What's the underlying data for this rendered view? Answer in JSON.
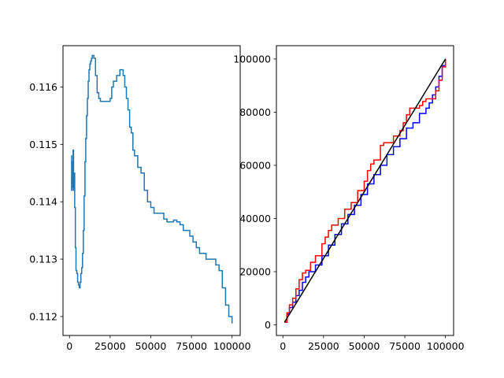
{
  "chart_data": [
    {
      "type": "line",
      "title": "",
      "xlabel": "",
      "ylabel": "",
      "xlim": [
        -4000,
        105000
      ],
      "ylim": [
        0.11167,
        0.11672
      ],
      "xticks": [
        0,
        25000,
        50000,
        75000,
        100000
      ],
      "yticks": [
        0.112,
        0.113,
        0.114,
        0.115,
        0.116
      ],
      "xtick_labels": [
        "0",
        "25000",
        "50000",
        "75000",
        "100000"
      ],
      "ytick_labels": [
        "0.112",
        "0.113",
        "0.114",
        "0.115",
        "0.116"
      ],
      "grid": false,
      "series": [
        {
          "color": "#1f77b4",
          "step": true,
          "x": [
            1000,
            1300,
            1600,
            1900,
            2200,
            2500,
            2800,
            3200,
            3600,
            4000,
            4500,
            5000,
            5500,
            6000,
            6500,
            7000,
            7500,
            8000,
            8500,
            9000,
            9500,
            10000,
            10500,
            11000,
            11500,
            12000,
            12500,
            13000,
            13500,
            14000,
            15000,
            16000,
            17000,
            18000,
            19000,
            20000,
            22000,
            25000,
            26000,
            27000,
            28000,
            29000,
            30000,
            31000,
            32000,
            33000,
            34000,
            35000,
            36000,
            37000,
            38000,
            39000,
            40000,
            42000,
            44000,
            46000,
            48000,
            50000,
            52000,
            54000,
            56000,
            58000,
            60000,
            62000,
            64000,
            66000,
            68000,
            70000,
            72000,
            74000,
            76000,
            78000,
            80000,
            84000,
            86000,
            88000,
            90000,
            92000,
            94000,
            96000,
            98000,
            100000
          ],
          "y": [
            0.1148,
            0.1142,
            0.1147,
            0.11425,
            0.1149,
            0.1142,
            0.1145,
            0.1139,
            0.1132,
            0.1128,
            0.11275,
            0.1126,
            0.11255,
            0.1125,
            0.1126,
            0.11275,
            0.11285,
            0.1131,
            0.1135,
            0.1141,
            0.1147,
            0.1151,
            0.1155,
            0.1158,
            0.1161,
            0.1163,
            0.1164,
            0.11645,
            0.1165,
            0.11655,
            0.1165,
            0.1162,
            0.1159,
            0.1158,
            0.11575,
            0.11575,
            0.11575,
            0.1158,
            0.116,
            0.1161,
            0.1161,
            0.1162,
            0.1162,
            0.1163,
            0.1163,
            0.1162,
            0.116,
            0.1158,
            0.1156,
            0.1153,
            0.1152,
            0.1149,
            0.1148,
            0.1146,
            0.1145,
            0.1142,
            0.114,
            0.1139,
            0.1138,
            0.1138,
            0.1138,
            0.1137,
            0.11365,
            0.11365,
            0.11368,
            0.11365,
            0.1136,
            0.1135,
            0.1135,
            0.1134,
            0.1133,
            0.1132,
            0.1131,
            0.113,
            0.113,
            0.113,
            0.1129,
            0.1128,
            0.1125,
            0.1122,
            0.112,
            0.11188
          ]
        }
      ]
    },
    {
      "type": "line",
      "title": "",
      "xlabel": "",
      "ylabel": "",
      "xlim": [
        -4000,
        105000
      ],
      "ylim": [
        -4000,
        105000
      ],
      "xticks": [
        0,
        25000,
        50000,
        75000,
        100000
      ],
      "yticks": [
        0,
        20000,
        40000,
        60000,
        80000,
        100000
      ],
      "xtick_labels": [
        "0",
        "25000",
        "50000",
        "75000",
        "100000"
      ],
      "ytick_labels": [
        "0",
        "20000",
        "40000",
        "60000",
        "80000",
        "100000"
      ],
      "grid": false,
      "series": [
        {
          "color": "#0000ff",
          "step": true,
          "x": [
            1000,
            2500,
            4000,
            6000,
            8000,
            10000,
            12000,
            14000,
            16000,
            20000,
            24000,
            28000,
            32000,
            36000,
            40000,
            44000,
            48000,
            52000,
            56000,
            60000,
            64000,
            68000,
            72000,
            76000,
            80000,
            84000,
            88000,
            90000,
            92000,
            94000,
            96000,
            98000,
            100000
          ],
          "y": [
            1000,
            4000,
            6500,
            8500,
            11000,
            13000,
            16000,
            18000,
            20000,
            22500,
            26000,
            30000,
            34000,
            38000,
            41500,
            45000,
            49000,
            53000,
            56500,
            60000,
            64000,
            67000,
            70000,
            74000,
            76000,
            79500,
            81500,
            83500,
            86500,
            89500,
            93500,
            97500,
            100000
          ]
        },
        {
          "color": "#ff0000",
          "step": true,
          "x": [
            1000,
            2500,
            4000,
            6000,
            8000,
            10000,
            12000,
            14000,
            17000,
            20000,
            24000,
            26000,
            28000,
            30000,
            34000,
            38000,
            42000,
            46000,
            50000,
            52000,
            54000,
            56000,
            60000,
            62000,
            64000,
            68000,
            72000,
            74000,
            76000,
            78000,
            84000,
            86000,
            88000,
            92000,
            94000,
            96000,
            98000,
            100000
          ],
          "y": [
            1000,
            4500,
            7500,
            10000,
            13500,
            17000,
            19500,
            20500,
            23500,
            26000,
            30500,
            33000,
            35500,
            37500,
            40000,
            43500,
            46000,
            50500,
            54000,
            58000,
            60500,
            62000,
            67500,
            68500,
            68500,
            71000,
            73000,
            76000,
            79000,
            81500,
            82500,
            84000,
            85000,
            85000,
            88000,
            92000,
            97000,
            100000
          ]
        },
        {
          "color": "#000000",
          "step": false,
          "x": [
            1000,
            100000
          ],
          "y": [
            1000,
            100000
          ]
        }
      ]
    }
  ]
}
